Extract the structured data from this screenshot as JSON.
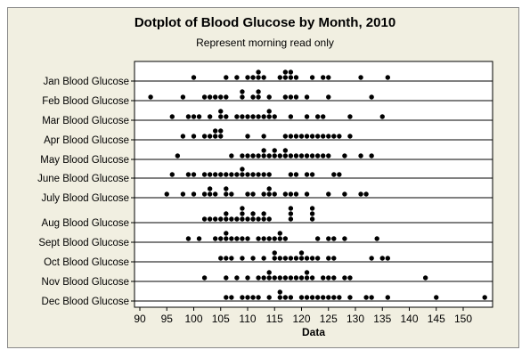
{
  "title": "Dotplot of Blood Glucose by Month, 2010",
  "subtitle": "Represent morning read only",
  "chart_data": {
    "type": "dotplot",
    "title": "Dotplot of Blood Glucose by Month, 2010",
    "subtitle": "Represent morning read only",
    "xlabel": "Data",
    "xlim": [
      88.5,
      155
    ],
    "xticks": [
      90,
      95,
      100,
      105,
      110,
      115,
      120,
      125,
      130,
      135,
      140,
      145,
      150
    ],
    "grid": "horizontal row baselines",
    "series": [
      {
        "name": "Jan Blood Glucose",
        "values": [
          100,
          106,
          108,
          110,
          111,
          112,
          112,
          113,
          116,
          117,
          117,
          118,
          118,
          119,
          122,
          124,
          125,
          131,
          136
        ]
      },
      {
        "name": "Feb Blood Glucose",
        "values": [
          92,
          98,
          102,
          103,
          104,
          105,
          106,
          109,
          109,
          111,
          112,
          112,
          114,
          117,
          118,
          119,
          121,
          125,
          133
        ]
      },
      {
        "name": "Mar Blood Glucose",
        "values": [
          96,
          99,
          100,
          101,
          103,
          105,
          105,
          106,
          108,
          109,
          110,
          111,
          112,
          113,
          114,
          114,
          115,
          118,
          121,
          123,
          124,
          129,
          135
        ]
      },
      {
        "name": "Apr Blood Glucose",
        "values": [
          98,
          100,
          102,
          103,
          104,
          104,
          105,
          105,
          110,
          113,
          117,
          118,
          119,
          120,
          121,
          122,
          123,
          124,
          125,
          126,
          127,
          129
        ]
      },
      {
        "name": "May Blood Glucose",
        "values": [
          97,
          107,
          109,
          110,
          111,
          112,
          113,
          113,
          114,
          115,
          115,
          116,
          117,
          117,
          118,
          119,
          120,
          121,
          122,
          123,
          124,
          125,
          128,
          131,
          133
        ]
      },
      {
        "name": "June Blood Glucose",
        "values": [
          96,
          99,
          100,
          102,
          103,
          104,
          105,
          106,
          107,
          108,
          109,
          109,
          110,
          111,
          112,
          113,
          114,
          118,
          119,
          121,
          122,
          126,
          127
        ]
      },
      {
        "name": "July Blood Glucose",
        "values": [
          95,
          98,
          100,
          102,
          103,
          103,
          104,
          106,
          106,
          107,
          110,
          111,
          113,
          114,
          114,
          115,
          117,
          118,
          119,
          121,
          125,
          128,
          131,
          132
        ]
      },
      {
        "name": "Aug Blood Glucose",
        "values": [
          102,
          103,
          104,
          105,
          106,
          106,
          107,
          108,
          109,
          109,
          109,
          110,
          111,
          111,
          112,
          113,
          113,
          114,
          118,
          118,
          118,
          122,
          122,
          122
        ]
      },
      {
        "name": "Sept Blood Glucose",
        "values": [
          99,
          101,
          104,
          105,
          106,
          106,
          107,
          108,
          109,
          110,
          112,
          113,
          114,
          115,
          116,
          116,
          117,
          123,
          125,
          126,
          128,
          134
        ]
      },
      {
        "name": "Oct Blood Glucose",
        "values": [
          105,
          106,
          107,
          109,
          111,
          113,
          115,
          115,
          116,
          117,
          118,
          119,
          120,
          120,
          121,
          122,
          123,
          125,
          126,
          133,
          135,
          136
        ]
      },
      {
        "name": "Nov Blood Glucose",
        "values": [
          102,
          106,
          108,
          110,
          112,
          113,
          114,
          114,
          115,
          116,
          117,
          118,
          119,
          120,
          121,
          121,
          122,
          124,
          125,
          126,
          128,
          129,
          143
        ]
      },
      {
        "name": "Dec Blood Glucose",
        "values": [
          106,
          107,
          109,
          110,
          111,
          112,
          114,
          116,
          116,
          117,
          118,
          120,
          121,
          122,
          123,
          124,
          125,
          126,
          127,
          129,
          132,
          133,
          136,
          145,
          154
        ]
      }
    ]
  }
}
